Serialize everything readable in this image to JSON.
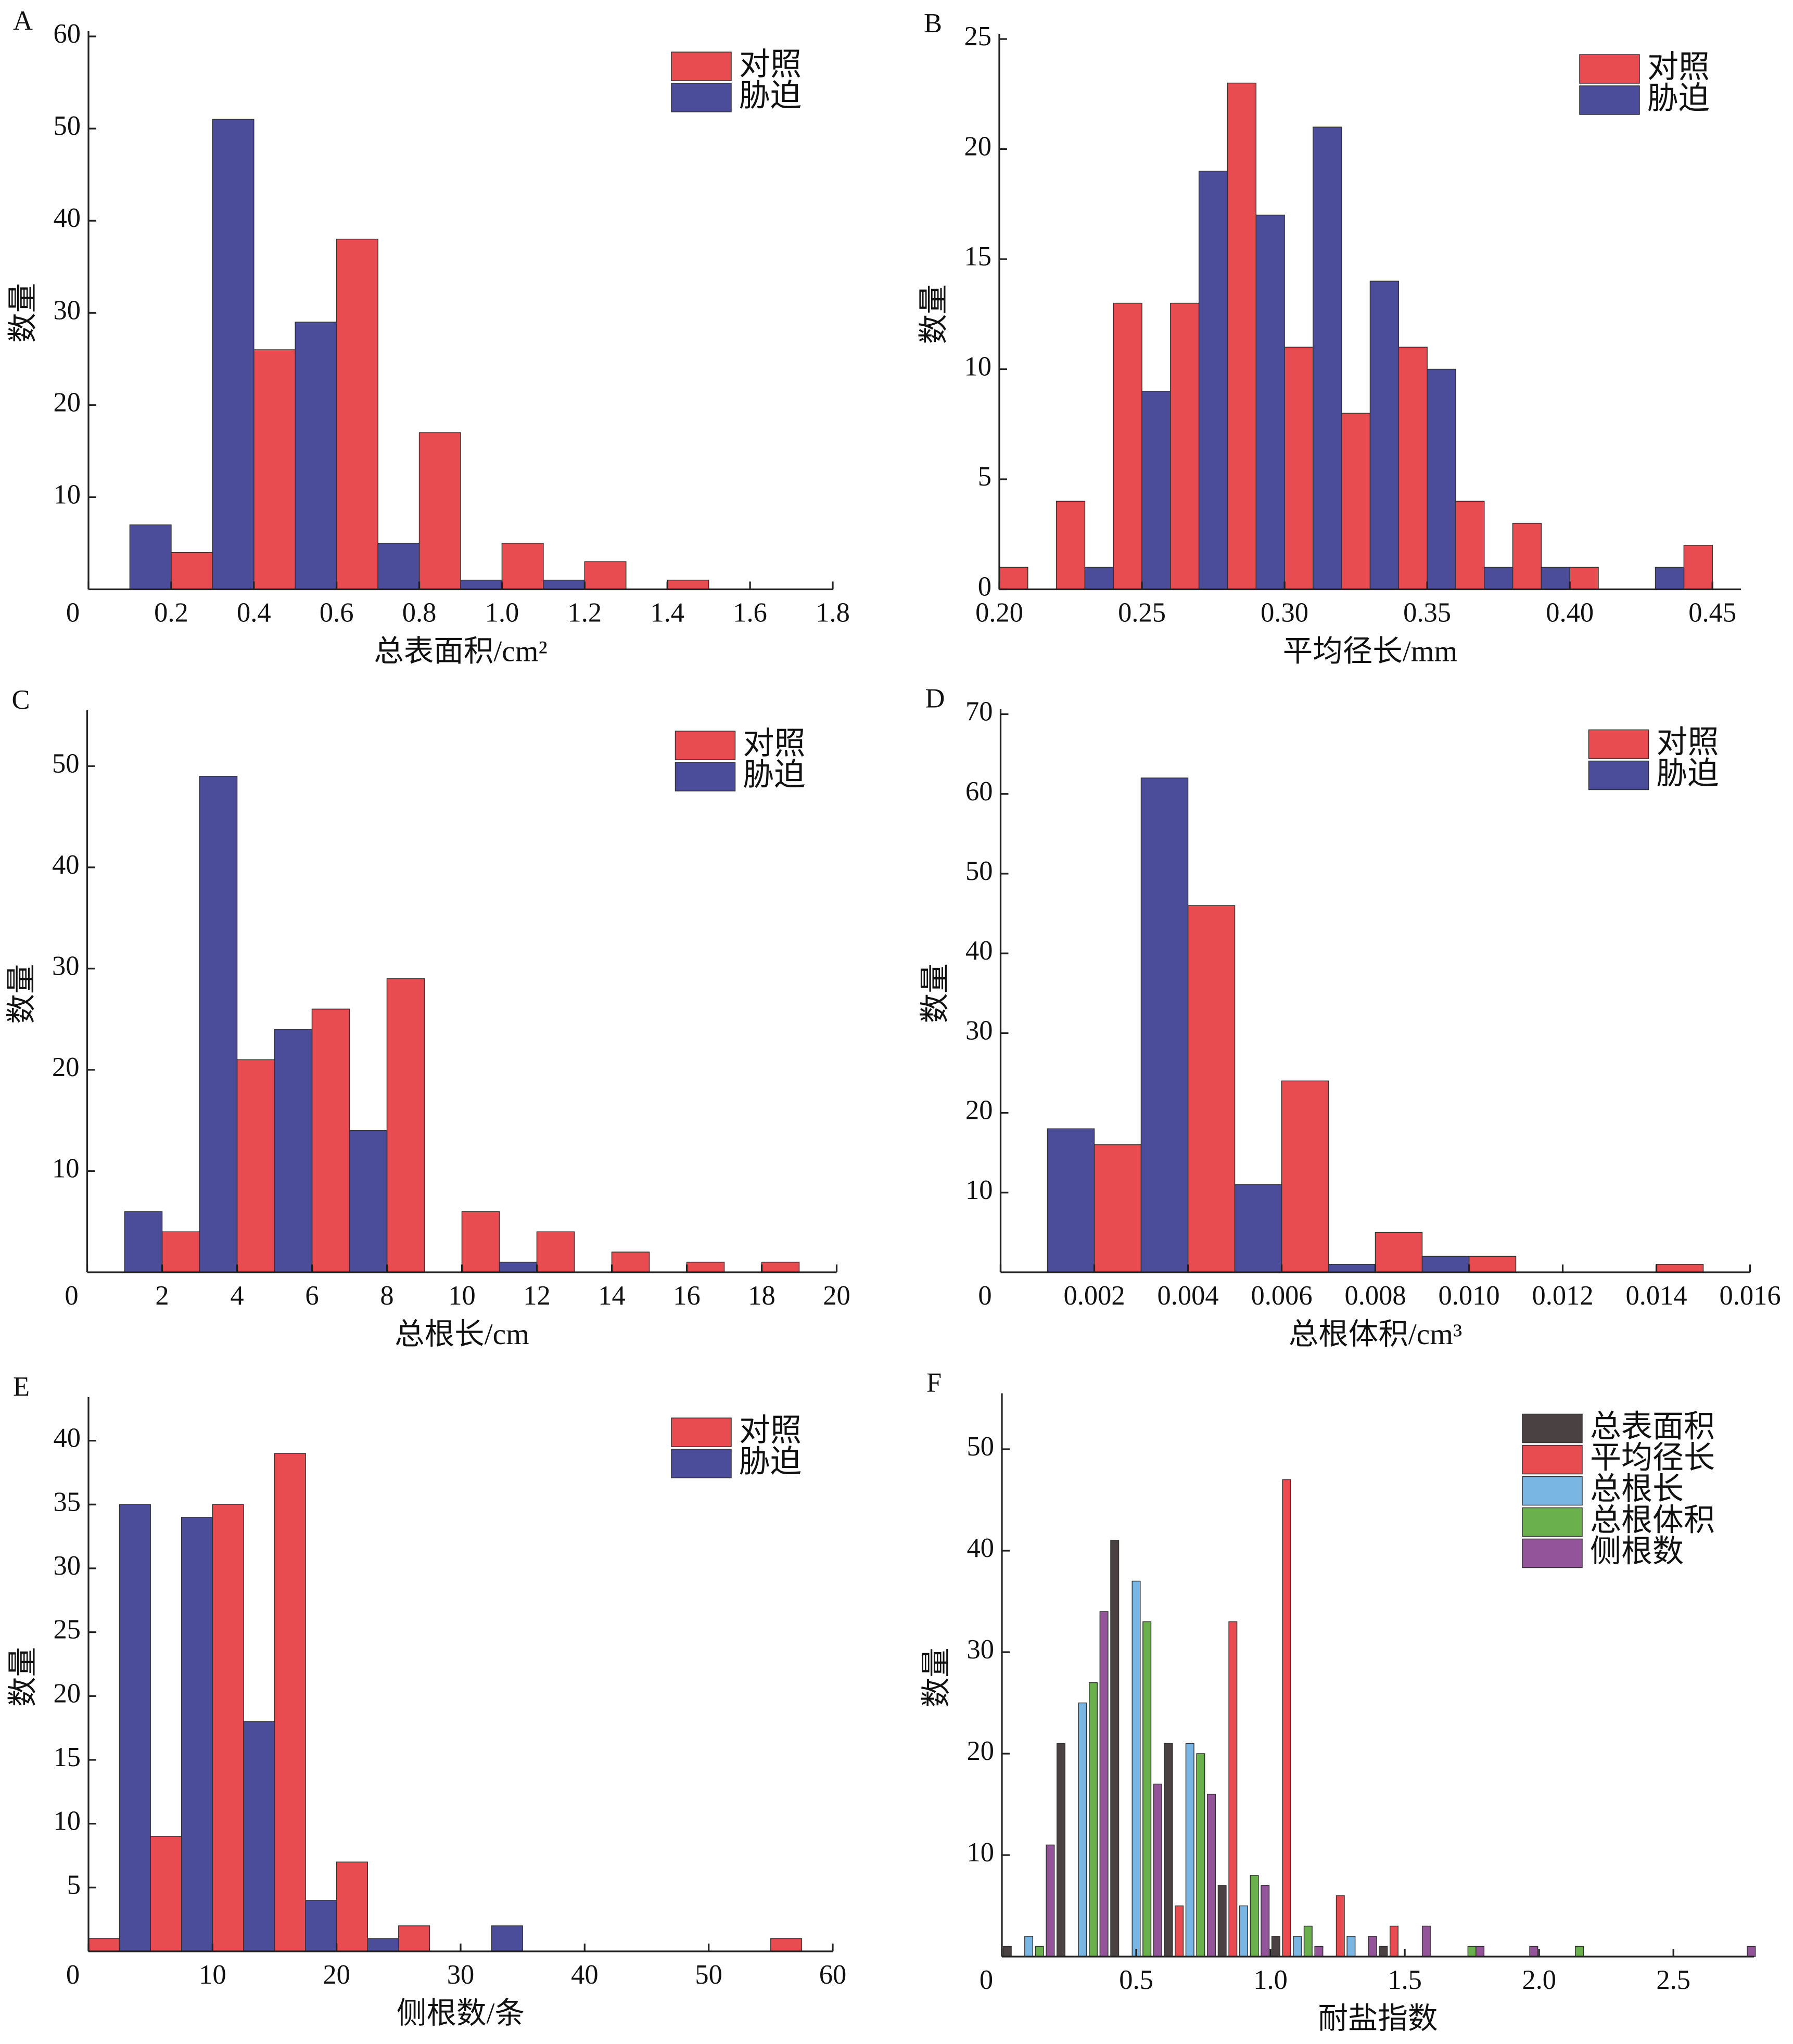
{
  "chart_data": [
    {
      "type": "bar",
      "panel": "A",
      "xlabel": "总表面积/cm²",
      "ylabel": "数量",
      "legend": "upper right",
      "xlim": [
        0,
        1.8
      ],
      "ylim": [
        0,
        60
      ],
      "xticks": [
        0,
        0.2,
        0.4,
        0.6,
        0.8,
        {
          "value": 1,
          "label": "1.0"
        },
        1.2,
        1.4,
        1.6,
        1.8
      ],
      "yticks": [
        10,
        20,
        30,
        40,
        50,
        60
      ],
      "series": [
        {
          "name": "对照",
          "color": "#e84b50",
          "x": [
            0.25,
            0.45,
            0.65,
            0.85,
            1.05,
            1.25,
            1.45
          ],
          "values": [
            4,
            26,
            38,
            17,
            5,
            3,
            1
          ]
        },
        {
          "name": "胁迫",
          "color": "#4b4d9a",
          "x": [
            0.15,
            0.35,
            0.55,
            0.75,
            0.95,
            1.15
          ],
          "values": [
            7,
            51,
            29,
            5,
            1,
            1
          ]
        }
      ]
    },
    {
      "type": "bar",
      "panel": "B",
      "xlabel": "平均径长/mm",
      "ylabel": "数量",
      "legend": "upper right",
      "xlim": [
        0.2,
        0.46
      ],
      "ylim": [
        0,
        25
      ],
      "xticks": [
        {
          "value": 0.2,
          "label": "0.20"
        },
        0.25,
        {
          "value": 0.3,
          "label": "0.30"
        },
        0.35,
        {
          "value": 0.4,
          "label": "0.40"
        },
        0.45
      ],
      "yticks": [
        0,
        5,
        10,
        15,
        20,
        25
      ],
      "series": [
        {
          "name": "对照",
          "color": "#e84b50",
          "x": [
            0.205,
            0.225,
            0.245,
            0.265,
            0.285,
            0.305,
            0.325,
            0.345,
            0.365,
            0.385,
            0.405,
            0.445
          ],
          "values": [
            1,
            4,
            13,
            13,
            23,
            11,
            8,
            11,
            4,
            3,
            1,
            2
          ]
        },
        {
          "name": "胁迫",
          "color": "#4b4d9a",
          "x": [
            0.235,
            0.255,
            0.275,
            0.295,
            0.315,
            0.335,
            0.355,
            0.375,
            0.395,
            0.435
          ],
          "values": [
            1,
            9,
            19,
            17,
            21,
            14,
            10,
            1,
            1,
            1
          ]
        }
      ]
    },
    {
      "type": "bar",
      "panel": "C",
      "xlabel": "总根长/cm",
      "ylabel": "数量",
      "legend": "upper right",
      "xlim": [
        0,
        20
      ],
      "ylim": [
        0,
        55
      ],
      "xticks": [
        0,
        2,
        4,
        6,
        8,
        10,
        12,
        14,
        16,
        18,
        20
      ],
      "yticks": [
        10,
        20,
        30,
        40,
        50
      ],
      "series": [
        {
          "name": "对照",
          "color": "#e84b50",
          "x": [
            2.5,
            4.5,
            6.5,
            8.5,
            10.5,
            12.5,
            14.5,
            16.5,
            18.5
          ],
          "values": [
            4,
            21,
            26,
            29,
            6,
            4,
            2,
            1,
            1
          ]
        },
        {
          "name": "胁迫",
          "color": "#4b4d9a",
          "x": [
            1.5,
            3.5,
            5.5,
            7.5,
            11.5
          ],
          "values": [
            6,
            49,
            24,
            14,
            1
          ]
        }
      ]
    },
    {
      "type": "bar",
      "panel": "D",
      "xlabel": "总根体积/cm³",
      "ylabel": "数量",
      "legend": "upper right",
      "xlim": [
        0,
        0.016
      ],
      "ylim": [
        0,
        70
      ],
      "xticks": [
        0,
        0.002,
        0.004,
        0.006,
        0.008,
        {
          "value": 0.01,
          "label": "0.010"
        },
        0.012,
        0.014,
        0.016
      ],
      "yticks": [
        10,
        20,
        30,
        40,
        50,
        60,
        70
      ],
      "series": [
        {
          "name": "对照",
          "color": "#e84b50",
          "x": [
            0.0025,
            0.0045,
            0.0065,
            0.0085,
            0.0105,
            0.0145
          ],
          "values": [
            16,
            46,
            24,
            5,
            2,
            1
          ]
        },
        {
          "name": "胁迫",
          "color": "#4b4d9a",
          "x": [
            0.0015,
            0.0035,
            0.0055,
            0.0075,
            0.0095
          ],
          "values": [
            18,
            62,
            11,
            1,
            2
          ]
        }
      ]
    },
    {
      "type": "bar",
      "panel": "E",
      "xlabel": "侧根数/条",
      "ylabel": "数量",
      "legend": "upper right",
      "xlim": [
        0,
        60
      ],
      "ylim": [
        0,
        43
      ],
      "xticks": [
        0,
        10,
        20,
        30,
        40,
        50,
        60
      ],
      "yticks": [
        5,
        10,
        15,
        20,
        25,
        30,
        35,
        40
      ],
      "series": [
        {
          "name": "对照",
          "color": "#e84b50",
          "x": [
            1.25,
            6.25,
            11.25,
            16.25,
            21.25,
            26.25,
            56.25
          ],
          "values": [
            1,
            9,
            35,
            39,
            7,
            2,
            1
          ]
        },
        {
          "name": "胁迫",
          "color": "#4b4d9a",
          "x": [
            3.75,
            8.75,
            13.75,
            18.75,
            23.75,
            33.75
          ],
          "values": [
            35,
            34,
            18,
            4,
            1,
            2
          ]
        }
      ]
    },
    {
      "type": "bar",
      "panel": "F",
      "xlabel": "耐盐指数",
      "ylabel": "数量",
      "legend": "upper right",
      "xlim": [
        0,
        2.8
      ],
      "ylim": [
        0,
        55
      ],
      "xticks": [
        0,
        0.5,
        {
          "value": 1,
          "label": "1.0"
        },
        1.5,
        {
          "value": 2,
          "label": "2.0"
        },
        2.5
      ],
      "yticks": [
        10,
        20,
        30,
        40,
        50
      ],
      "series": [
        {
          "name": "总表面积",
          "color": "#4a4242",
          "x": [
            0.02,
            0.22,
            0.42,
            0.62,
            0.82,
            1.02,
            1.42
          ],
          "values": [
            1,
            21,
            41,
            21,
            7,
            2,
            1
          ]
        },
        {
          "name": "平均径长",
          "color": "#e84b50",
          "x": [
            0.66,
            0.86,
            1.06,
            1.26,
            1.46
          ],
          "values": [
            5,
            33,
            47,
            6,
            3
          ]
        },
        {
          "name": "总根长",
          "color": "#7ab6e3",
          "x": [
            0.1,
            0.3,
            0.5,
            0.7,
            0.9,
            1.1,
            1.3
          ],
          "values": [
            2,
            25,
            37,
            21,
            5,
            2,
            2
          ]
        },
        {
          "name": "总根体积",
          "color": "#6ab04c",
          "x": [
            0.14,
            0.34,
            0.54,
            0.74,
            0.94,
            1.14,
            1.75,
            2.15
          ],
          "values": [
            1,
            27,
            33,
            20,
            8,
            3,
            1,
            1
          ]
        },
        {
          "name": "侧根数",
          "color": "#94549a",
          "x": [
            0.18,
            0.38,
            0.58,
            0.78,
            0.98,
            1.18,
            1.38,
            1.58,
            1.78,
            1.98,
            2.79
          ],
          "values": [
            11,
            34,
            17,
            16,
            7,
            1,
            2,
            3,
            1,
            1,
            1
          ]
        }
      ]
    }
  ]
}
